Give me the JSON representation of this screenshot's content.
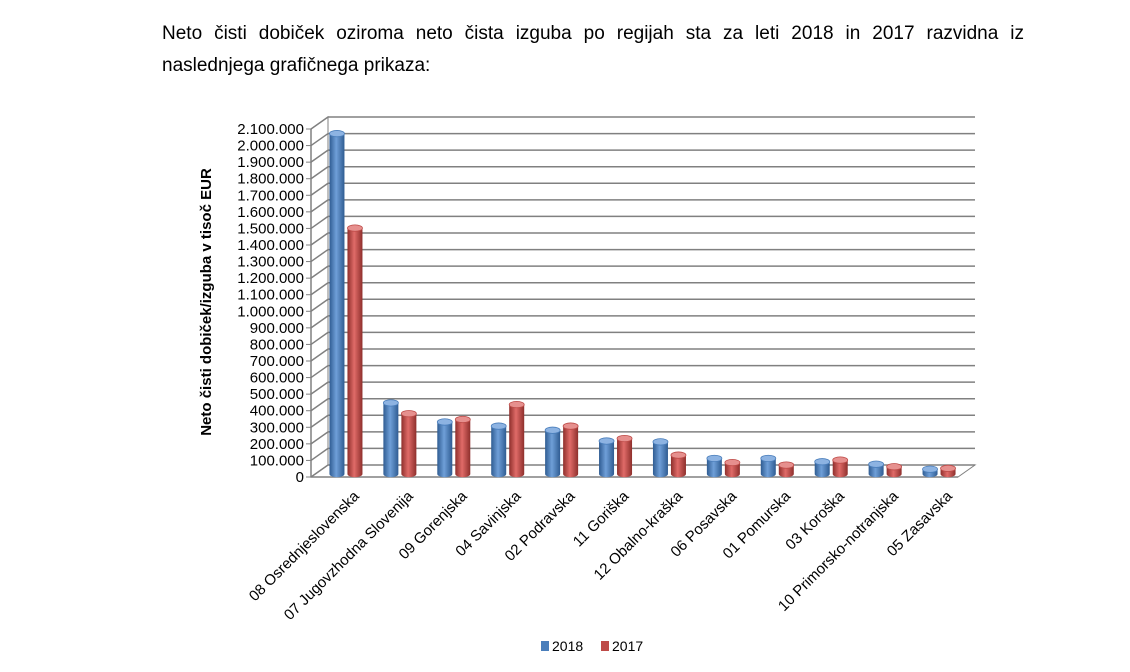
{
  "intro_text": "Neto čisti dobiček oziroma neto čista izguba po regijah sta za leti 2018 in 2017 razvidna iz naslednjega grafičnega prikaza:",
  "chart_data": {
    "type": "bar",
    "categories": [
      "08 Osrednjeslovenska",
      "07 Jugovzhodna Slovenija",
      "09 Gorenjska",
      "04 Savinjska",
      "02 Podravska",
      "11 Goriška",
      "12 Obalno-kraška",
      "06 Posavska",
      "01 Pomurska",
      "03 Koroška",
      "10 Primorsko-notranjska",
      "05 Zasavska"
    ],
    "series": [
      {
        "name": "2018",
        "color": "#4A7EBB",
        "values": [
          2060000,
          435000,
          320000,
          295000,
          270000,
          205000,
          200000,
          100000,
          100000,
          80000,
          65000,
          35000
        ]
      },
      {
        "name": "2017",
        "color": "#BE4B48",
        "values": [
          1490000,
          370000,
          335000,
          425000,
          295000,
          220000,
          120000,
          75000,
          60000,
          90000,
          50000,
          40000
        ]
      }
    ],
    "ylabel": "Neto čisti dobiček/izguba v tisoč EUR",
    "ylim": [
      0,
      2100000
    ],
    "ytick_step": 100000,
    "yticks_labels": [
      "0",
      "100.000",
      "200.000",
      "300.000",
      "400.000",
      "500.000",
      "600.000",
      "700.000",
      "800.000",
      "900.000",
      "1.000.000",
      "1.100.000",
      "1.200.000",
      "1.300.000",
      "1.400.000",
      "1.500.000",
      "1.600.000",
      "1.700.000",
      "1.800.000",
      "1.900.000",
      "2.000.000",
      "2.100.000"
    ],
    "grid": true,
    "legend_position": "bottom"
  }
}
